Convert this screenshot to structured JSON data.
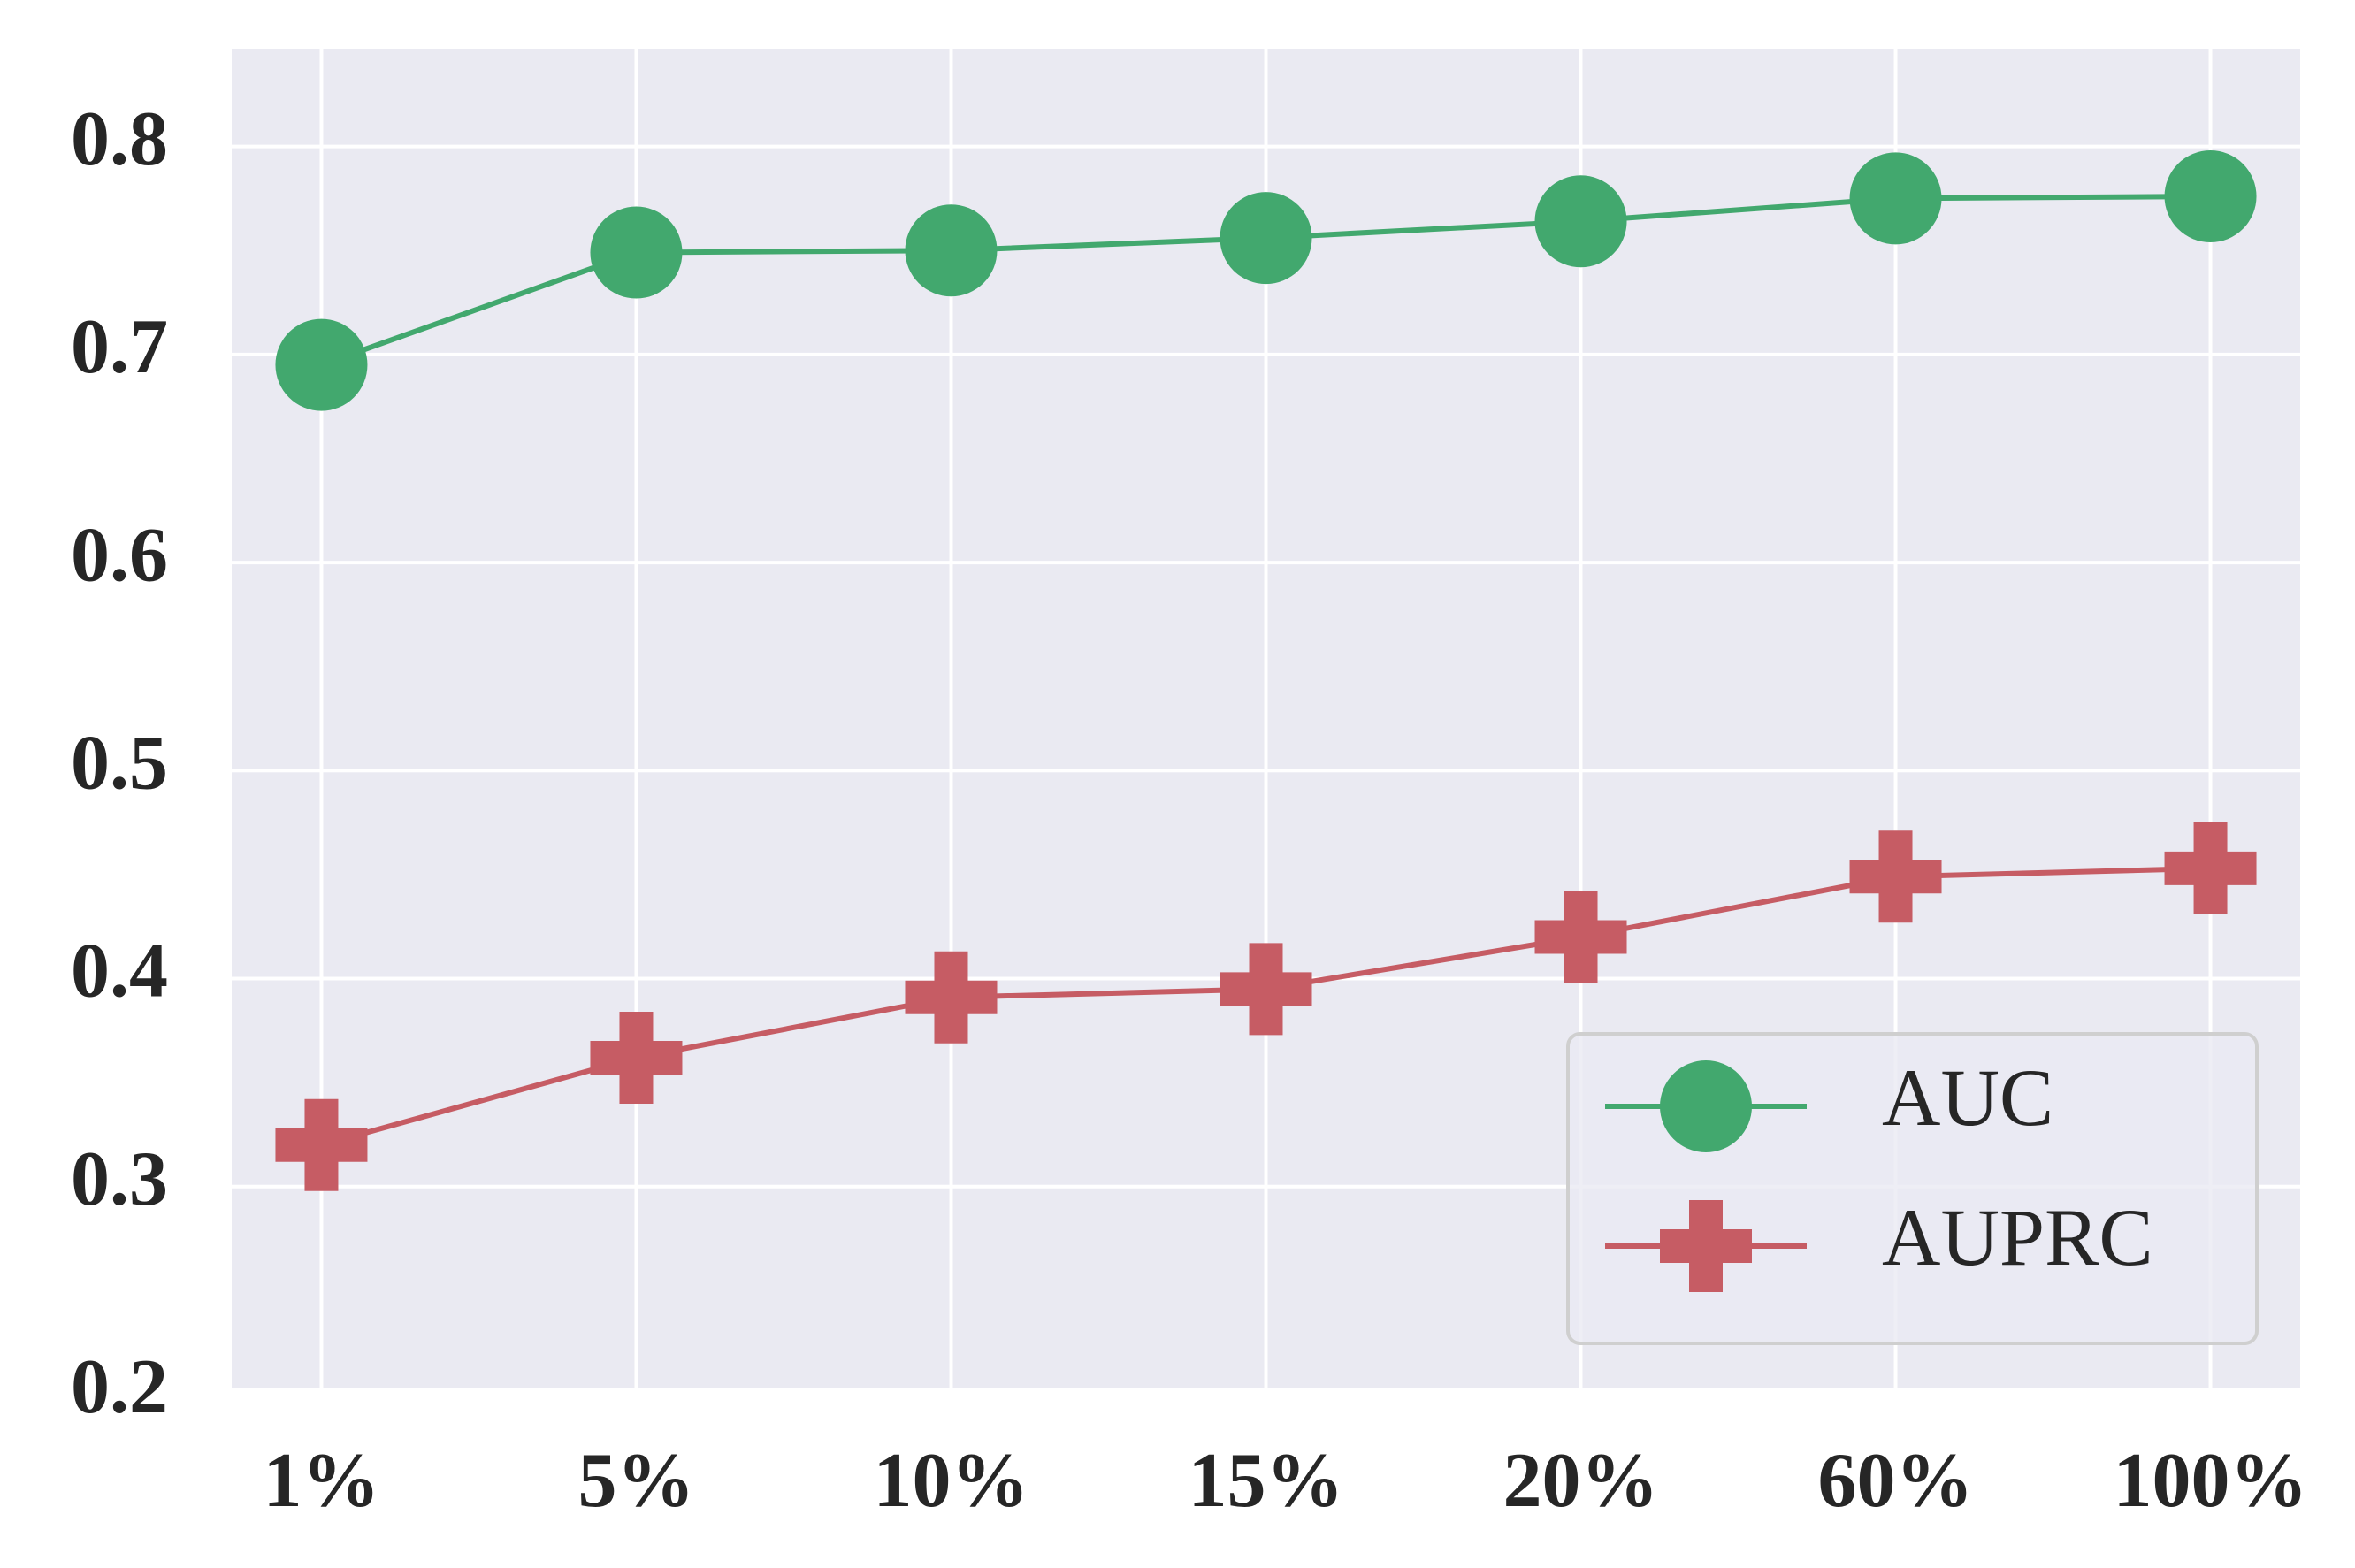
{
  "chart_data": {
    "type": "line",
    "categories": [
      "1%",
      "5%",
      "10%",
      "15%",
      "20%",
      "60%",
      "100%"
    ],
    "series": [
      {
        "name": "AUC",
        "color": "#42a86e",
        "marker": "circle",
        "values": [
          0.695,
          0.749,
          0.75,
          0.756,
          0.764,
          0.775,
          0.776
        ]
      },
      {
        "name": "AUPRC",
        "color": "#c65c64",
        "marker": "plus",
        "values": [
          0.32,
          0.362,
          0.391,
          0.395,
          0.42,
          0.449,
          0.453
        ]
      }
    ],
    "ylim": [
      0.203,
      0.847
    ],
    "yticks": [
      0.2,
      0.3,
      0.4,
      0.5,
      0.6,
      0.7,
      0.8
    ],
    "grid": true,
    "legend": "lower right"
  }
}
